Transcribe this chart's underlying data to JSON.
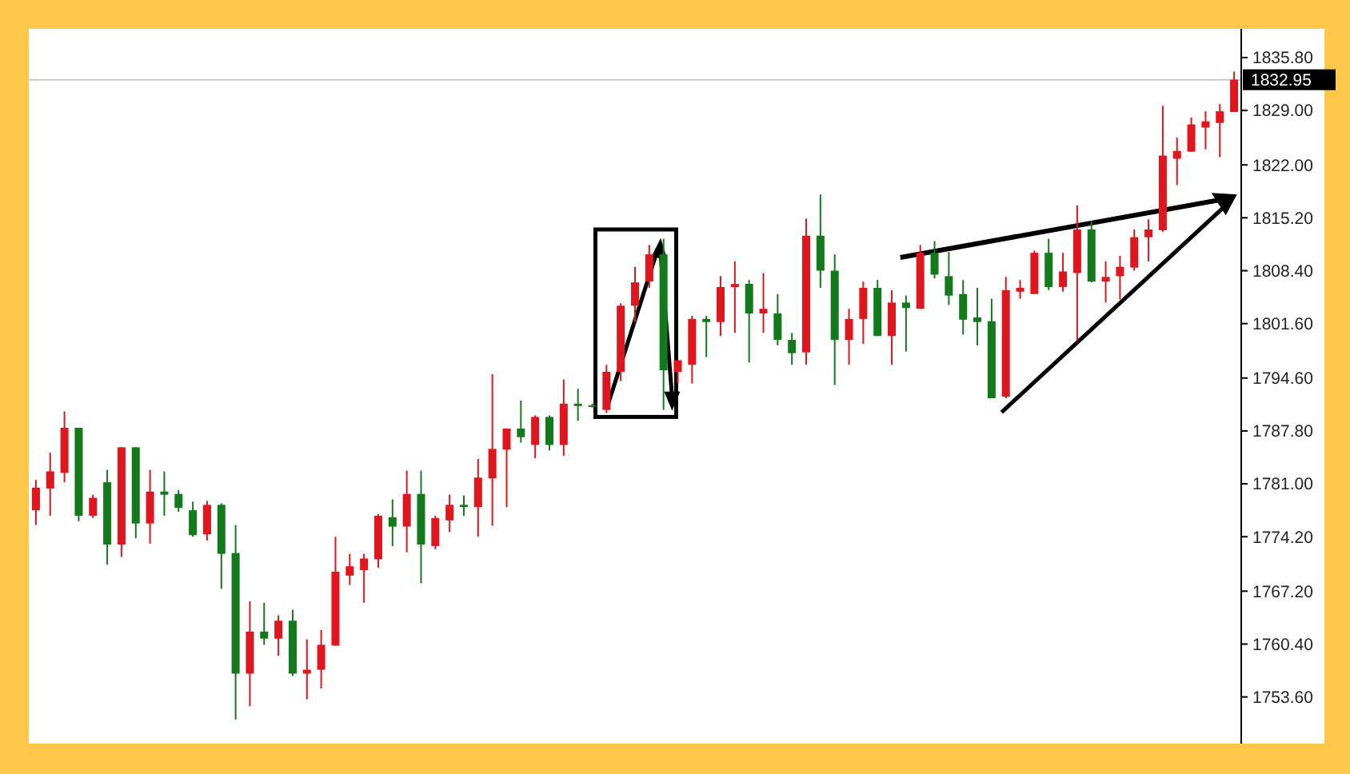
{
  "chart_data": {
    "type": "candlestick",
    "categories": [
      null,
      null,
      null,
      null,
      null,
      null,
      null,
      null,
      null,
      null,
      null,
      null,
      null,
      null,
      null,
      null,
      null,
      null,
      null,
      null,
      null,
      null,
      null,
      null,
      null,
      null,
      null,
      null,
      null,
      null,
      null,
      null,
      null,
      null,
      null,
      null,
      null,
      null,
      null,
      null,
      null,
      null,
      null,
      null,
      null,
      null,
      null,
      null,
      null,
      null,
      null,
      null,
      null,
      null,
      null,
      null,
      null,
      null,
      null,
      null,
      null,
      null,
      null,
      null,
      null,
      null,
      null,
      null,
      null,
      null,
      null,
      null,
      null,
      null,
      null,
      null,
      null,
      null,
      null,
      null,
      null,
      null,
      null,
      null,
      null
    ],
    "ohlc": [
      [
        1777.6,
        1781.5,
        1775.7,
        1780.5
      ],
      [
        1780.4,
        1785.0,
        1776.9,
        1782.6
      ],
      [
        1782.4,
        1790.3,
        1781.2,
        1788.2
      ],
      [
        1788.2,
        1788.2,
        1776.2,
        1776.9
      ],
      [
        1776.9,
        1779.6,
        1776.6,
        1779.2
      ],
      [
        1781.2,
        1782.8,
        1770.6,
        1773.2
      ],
      [
        1773.2,
        1785.7,
        1771.6,
        1785.7
      ],
      [
        1785.7,
        1785.7,
        1774.0,
        1775.9
      ],
      [
        1775.9,
        1782.8,
        1773.3,
        1780.0
      ],
      [
        1780.0,
        1782.6,
        1776.9,
        1779.6
      ],
      [
        1779.7,
        1780.2,
        1777.4,
        1777.9
      ],
      [
        1777.6,
        1778.7,
        1774.2,
        1774.4
      ],
      [
        1774.5,
        1778.8,
        1773.7,
        1778.3
      ],
      [
        1778.3,
        1778.5,
        1767.5,
        1772.0
      ],
      [
        1772.1,
        1775.7,
        1750.7,
        1756.6
      ],
      [
        1756.6,
        1765.9,
        1752.4,
        1762.0
      ],
      [
        1762.0,
        1765.7,
        1760.3,
        1761.1
      ],
      [
        1761.1,
        1764.1,
        1758.9,
        1763.4
      ],
      [
        1763.4,
        1764.8,
        1756.3,
        1756.6
      ],
      [
        1756.6,
        1761.0,
        1753.3,
        1757.1
      ],
      [
        1757.1,
        1762.2,
        1754.7,
        1760.3
      ],
      [
        1760.2,
        1774.2,
        1760.2,
        1769.7
      ],
      [
        1769.2,
        1772.0,
        1768.0,
        1770.4
      ],
      [
        1769.9,
        1772.0,
        1765.7,
        1771.4
      ],
      [
        1771.3,
        1777.1,
        1770.2,
        1776.9
      ],
      [
        1776.7,
        1779.0,
        1773.0,
        1775.5
      ],
      [
        1775.5,
        1782.7,
        1772.2,
        1779.7
      ],
      [
        1779.7,
        1782.7,
        1768.2,
        1773.2
      ],
      [
        1773.0,
        1776.9,
        1772.6,
        1776.6
      ],
      [
        1776.3,
        1779.6,
        1774.8,
        1778.3
      ],
      [
        1778.3,
        1779.5,
        1776.9,
        1778.0
      ],
      [
        1778.0,
        1784.2,
        1774.2,
        1781.8
      ],
      [
        1781.7,
        1795.1,
        1775.6,
        1785.5
      ],
      [
        1785.4,
        1788.1,
        1778.0,
        1788.1
      ],
      [
        1788.1,
        1791.7,
        1786.3,
        1787.0
      ],
      [
        1786.0,
        1789.8,
        1784.3,
        1789.6
      ],
      [
        1789.6,
        1789.8,
        1785.3,
        1786.0
      ],
      [
        1786.0,
        1794.4,
        1784.6,
        1791.3
      ],
      [
        1791.3,
        1793.2,
        1789.1,
        1791.0
      ],
      [
        1791.1,
        1791.3,
        1790.8,
        1791.0
      ],
      [
        1790.5,
        1796.3,
        1790.1,
        1795.4
      ],
      [
        1795.4,
        1804.2,
        1794.2,
        1803.9
      ],
      [
        1803.9,
        1808.9,
        1801.8,
        1806.9
      ],
      [
        1807.0,
        1811.7,
        1806.2,
        1810.5
      ],
      [
        1810.5,
        1812.5,
        1790.5,
        1795.6
      ],
      [
        1795.4,
        1796.9,
        1793.9,
        1796.9
      ],
      [
        1796.3,
        1802.6,
        1793.9,
        1802.2
      ],
      [
        1802.2,
        1802.6,
        1797.3,
        1801.8
      ],
      [
        1801.8,
        1807.7,
        1800.0,
        1806.3
      ],
      [
        1806.3,
        1809.6,
        1800.4,
        1806.7
      ],
      [
        1806.7,
        1807.2,
        1796.6,
        1802.9
      ],
      [
        1802.9,
        1808.1,
        1800.4,
        1803.5
      ],
      [
        1802.9,
        1805.4,
        1798.8,
        1799.5
      ],
      [
        1799.5,
        1800.4,
        1796.3,
        1797.8
      ],
      [
        1797.9,
        1815.1,
        1796.3,
        1812.9
      ],
      [
        1812.9,
        1818.2,
        1806.2,
        1808.4
      ],
      [
        1808.4,
        1810.5,
        1793.7,
        1799.5
      ],
      [
        1799.5,
        1803.5,
        1796.3,
        1802.2
      ],
      [
        1802.2,
        1807.0,
        1799.0,
        1806.2
      ],
      [
        1806.2,
        1807.2,
        1800.0,
        1800.0
      ],
      [
        1800.0,
        1805.9,
        1796.3,
        1804.3
      ],
      [
        1804.3,
        1805.2,
        1798.0,
        1803.6
      ],
      [
        1803.5,
        1811.7,
        1803.5,
        1810.7
      ],
      [
        1810.7,
        1812.2,
        1807.4,
        1807.9
      ],
      [
        1807.7,
        1810.8,
        1804.0,
        1805.2
      ],
      [
        1805.4,
        1807.2,
        1800.2,
        1802.1
      ],
      [
        1802.4,
        1806.2,
        1798.8,
        1801.8
      ],
      [
        1801.9,
        1804.8,
        1792.0,
        1792.0
      ],
      [
        1792.2,
        1807.6,
        1792.0,
        1805.9
      ],
      [
        1805.7,
        1807.2,
        1804.8,
        1806.2
      ],
      [
        1805.4,
        1811.0,
        1805.4,
        1810.7
      ],
      [
        1810.7,
        1812.5,
        1805.9,
        1806.3
      ],
      [
        1806.3,
        1810.7,
        1805.7,
        1808.3
      ],
      [
        1808.1,
        1816.8,
        1799.4,
        1813.7
      ],
      [
        1813.7,
        1814.8,
        1806.9,
        1807.0
      ],
      [
        1807.0,
        1809.6,
        1804.3,
        1807.6
      ],
      [
        1807.7,
        1810.3,
        1804.7,
        1808.9
      ],
      [
        1808.8,
        1813.7,
        1808.4,
        1812.7
      ],
      [
        1812.7,
        1815.0,
        1809.6,
        1813.7
      ],
      [
        1813.6,
        1829.6,
        1813.4,
        1823.2
      ],
      [
        1822.8,
        1825.5,
        1819.4,
        1823.8
      ],
      [
        1823.7,
        1828.1,
        1823.7,
        1827.2
      ],
      [
        1826.8,
        1828.9,
        1824.0,
        1827.6
      ],
      [
        1827.4,
        1829.8,
        1823.0,
        1828.9
      ],
      [
        1828.8,
        1834.0,
        1828.8,
        1832.95
      ]
    ],
    "colors": [
      "#e0161e",
      "#e0161e",
      "#e0161e",
      "#127a1b",
      "#e0161e",
      "#127a1b",
      "#e0161e",
      "#127a1b",
      "#e0161e",
      "#127a1b",
      "#127a1b",
      "#127a1b",
      "#e0161e",
      "#127a1b",
      "#127a1b",
      "#e0161e",
      "#127a1b",
      "#e0161e",
      "#127a1b",
      "#e0161e",
      "#e0161e",
      "#e0161e",
      "#e0161e",
      "#e0161e",
      "#e0161e",
      "#127a1b",
      "#e0161e",
      "#127a1b",
      "#e0161e",
      "#e0161e",
      "#127a1b",
      "#e0161e",
      "#e0161e",
      "#e0161e",
      "#127a1b",
      "#e0161e",
      "#127a1b",
      "#e0161e",
      "#127a1b",
      "#127a1b",
      "#e0161e",
      "#e0161e",
      "#e0161e",
      "#e0161e",
      "#127a1b",
      "#e0161e",
      "#e0161e",
      "#127a1b",
      "#e0161e",
      "#e0161e",
      "#127a1b",
      "#e0161e",
      "#127a1b",
      "#127a1b",
      "#e0161e",
      "#127a1b",
      "#127a1b",
      "#e0161e",
      "#e0161e",
      "#127a1b",
      "#e0161e",
      "#127a1b",
      "#e0161e",
      "#127a1b",
      "#127a1b",
      "#127a1b",
      "#127a1b",
      "#127a1b",
      "#e0161e",
      "#e0161e",
      "#e0161e",
      "#127a1b",
      "#e0161e",
      "#e0161e",
      "#127a1b",
      "#e0161e",
      "#e0161e",
      "#e0161e",
      "#e0161e",
      "#e0161e",
      "#e0161e",
      "#e0161e",
      "#e0161e",
      "#e0161e",
      "#e0161e"
    ],
    "ylim": [
      1747.6,
      1839.5
    ],
    "yticks": [
      {
        "value": 1835.8,
        "label": "1835.80"
      },
      {
        "value": 1829,
        "label": "1829.00"
      },
      {
        "value": 1822,
        "label": "1822.00"
      },
      {
        "value": 1815.2,
        "label": "1815.20"
      },
      {
        "value": 1808.4,
        "label": "1808.40"
      },
      {
        "value": 1801.6,
        "label": "1801.60"
      },
      {
        "value": 1794.6,
        "label": "1794.60"
      },
      {
        "value": 1787.8,
        "label": "1787.80"
      },
      {
        "value": 1781,
        "label": "1781.00"
      },
      {
        "value": 1774.2,
        "label": "1774.20"
      },
      {
        "value": 1767.2,
        "label": "1767.20"
      },
      {
        "value": 1760.4,
        "label": "1760.40"
      },
      {
        "value": 1753.6,
        "label": "1753.60"
      }
    ],
    "ref_lines": [
      {
        "axis": "y",
        "value": 1832.95,
        "label": "1832.95",
        "color": "#c8c8c8"
      }
    ]
  }
}
